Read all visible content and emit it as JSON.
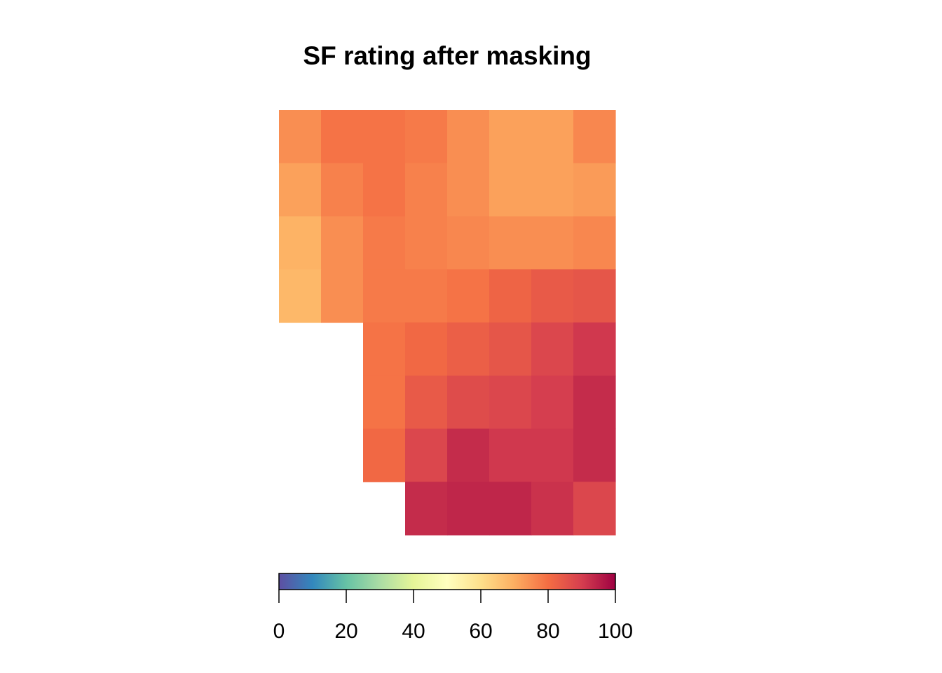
{
  "chart_data": {
    "type": "heatmap",
    "title": "SF rating after masking",
    "xlabel": "",
    "ylabel": "",
    "grid": false,
    "axes_visible": false,
    "colormap": "Spectral (reversed: low = purple/blue, high = dark red)",
    "colorbar": {
      "placement": "bottom",
      "range": [
        0,
        100
      ],
      "ticks": [
        0,
        20,
        40,
        60,
        80,
        100
      ],
      "tick_labels": [
        "0",
        "20",
        "40",
        "60",
        "80",
        "100"
      ],
      "colors": [
        "#5e4fa2",
        "#3288bd",
        "#66c2a5",
        "#abdda4",
        "#e6f598",
        "#ffffbf",
        "#fee08b",
        "#fdae61",
        "#f46d43",
        "#d53e4f",
        "#9e0142"
      ]
    },
    "n_cols": 8,
    "n_rows": 8,
    "masked_value": null,
    "values": [
      [
        75,
        79,
        79,
        78,
        75,
        72,
        72,
        76
      ],
      [
        72,
        77,
        79,
        77,
        75,
        72,
        72,
        73
      ],
      [
        69,
        75,
        78,
        77,
        76,
        75,
        75,
        76
      ],
      [
        68,
        75,
        78,
        78,
        79,
        82,
        84,
        85
      ],
      [
        null,
        null,
        79,
        81,
        83,
        85,
        88,
        91
      ],
      [
        null,
        null,
        79,
        84,
        87,
        88,
        90,
        93
      ],
      [
        null,
        null,
        81,
        88,
        93,
        91,
        91,
        93
      ],
      [
        null,
        null,
        null,
        93,
        94,
        94,
        92,
        88
      ]
    ]
  }
}
